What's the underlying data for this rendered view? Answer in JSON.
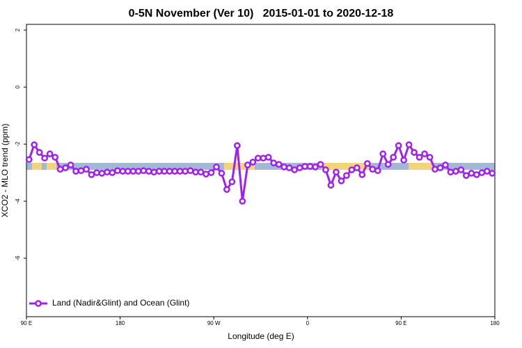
{
  "chart_data": {
    "type": "line",
    "title": "0-5N November (Ver 10)   2015-01-01 to 2020-12-18",
    "x_label": "Longitude (deg E)",
    "y_label": "XCO2 - MLO trend (ppm)",
    "xlim": [
      90,
      540
    ],
    "ylim": [
      -8.05,
      2.2
    ],
    "xticks": [
      {
        "value": 90,
        "label": "90 E"
      },
      180,
      {
        "value": 270,
        "label": "90 W"
      },
      {
        "value": 360,
        "label": "0"
      },
      {
        "value": 450,
        "label": "90 E"
      },
      {
        "value": 540,
        "label": "180"
      }
    ],
    "yticks": [
      2,
      0,
      -2,
      -4,
      -6
    ],
    "legend": "bottom-left",
    "x": [
      92.5,
      97.5,
      102.5,
      107.5,
      112.5,
      117.5,
      122.5,
      127.5,
      132.5,
      137.5,
      142.5,
      147.5,
      152.5,
      157.5,
      162.5,
      167.5,
      172.5,
      177.5,
      182.5,
      187.5,
      192.5,
      197.5,
      202.5,
      207.5,
      212.5,
      217.5,
      222.5,
      227.5,
      232.5,
      237.5,
      242.5,
      247.5,
      252.5,
      257.5,
      262.5,
      267.5,
      272.5,
      277.5,
      282.5,
      287.5,
      292.5,
      297.5,
      302.5,
      307.5,
      312.5,
      317.5,
      322.5,
      327.5,
      332.5,
      337.5,
      342.5,
      347.5,
      352.5,
      357.5,
      362.5,
      367.5,
      372.5,
      377.5,
      382.5,
      387.5,
      392.5,
      397.5,
      402.5,
      407.5,
      412.5,
      417.5,
      422.5,
      427.5,
      432.5,
      437.5,
      442.5,
      447.5,
      452.5,
      457.5,
      462.5,
      467.5,
      472.5,
      477.5,
      482.5,
      487.5,
      492.5,
      497.5,
      502.5,
      507.5,
      512.5,
      517.5,
      522.5,
      527.5,
      532.5,
      537.5
    ],
    "series": [
      {
        "name": "Land (Nadir&Glint) and Ocean (Glint)",
        "color": "#a020f0",
        "values": [
          -2.54,
          -2.02,
          -2.29,
          -2.49,
          -2.34,
          -2.46,
          -2.88,
          -2.83,
          -2.73,
          -2.95,
          -2.93,
          -2.88,
          -3.07,
          -3.0,
          -3.02,
          -2.98,
          -3.0,
          -2.93,
          -2.95,
          -2.95,
          -2.95,
          -2.95,
          -2.93,
          -2.95,
          -2.98,
          -2.95,
          -2.95,
          -2.95,
          -2.95,
          -2.95,
          -2.95,
          -2.93,
          -2.98,
          -2.98,
          -3.05,
          -3.0,
          -2.8,
          -3.02,
          -3.59,
          -3.32,
          -2.05,
          -4.0,
          -2.73,
          -2.63,
          -2.49,
          -2.49,
          -2.46,
          -2.66,
          -2.71,
          -2.8,
          -2.83,
          -2.9,
          -2.83,
          -2.78,
          -2.78,
          -2.8,
          -2.71,
          -2.9,
          -3.44,
          -2.98,
          -3.29,
          -3.1,
          -2.9,
          -2.83,
          -3.07,
          -2.68,
          -2.88,
          -2.93,
          -2.34,
          -2.71,
          -2.46,
          -2.05,
          -2.56,
          -2.02,
          -2.29,
          -2.46,
          -2.34,
          -2.46,
          -2.88,
          -2.83,
          -2.73,
          -2.98,
          -2.95,
          -2.9,
          -3.1,
          -3.02,
          -3.07,
          -3.0,
          -2.95,
          -3.02
        ]
      }
    ]
  }
}
